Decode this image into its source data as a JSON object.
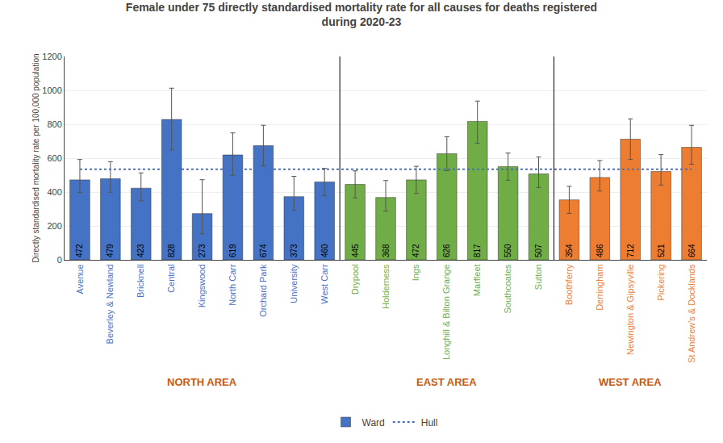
{
  "chart_data": {
    "type": "bar",
    "title": "Female under 75 directly standardised mortality rate for all causes for deaths registered\nduring 2020-23",
    "ylabel": "Directly standardised mortality rate per 100,000 population",
    "categories": [
      "Avenue",
      "Beverley & Newland",
      "Bricknell",
      "Central",
      "Kingswood",
      "North Carr",
      "Orchard Park",
      "University",
      "West Carr",
      "Drypool",
      "Holderness",
      "Ings",
      "Longhill & Bilton Grange",
      "Marfleet",
      "Southcoates",
      "Sutton",
      "Boothferry",
      "Derringham",
      "Newington & Gipsyville",
      "Pickering",
      "St Andrew's & Docklands"
    ],
    "series": [
      {
        "name": "Ward",
        "type": "bar",
        "values": [
          472,
          479,
          423,
          828,
          273,
          619,
          674,
          373,
          460,
          445,
          368,
          472,
          626,
          817,
          550,
          507,
          354,
          486,
          712,
          521,
          664
        ],
        "colors": [
          "#4472C4",
          "#4472C4",
          "#4472C4",
          "#4472C4",
          "#4472C4",
          "#4472C4",
          "#4472C4",
          "#4472C4",
          "#4472C4",
          "#70AD47",
          "#70AD47",
          "#70AD47",
          "#70AD47",
          "#70AD47",
          "#70AD47",
          "#70AD47",
          "#ED7D31",
          "#ED7D31",
          "#ED7D31",
          "#ED7D31",
          "#ED7D31"
        ],
        "error_low": [
          75,
          80,
          75,
          180,
          120,
          120,
          120,
          80,
          80,
          80,
          80,
          80,
          100,
          130,
          80,
          80,
          80,
          80,
          120,
          80,
          100
        ],
        "error_high": [
          120,
          100,
          90,
          185,
          200,
          130,
          120,
          120,
          80,
          80,
          100,
          80,
          100,
          120,
          80,
          100,
          80,
          100,
          120,
          100,
          130
        ]
      },
      {
        "name": "Hull",
        "type": "line",
        "line_style": "dotted",
        "color": "#4472C4",
        "values": [
          535,
          535,
          535,
          535,
          535,
          535,
          535,
          535,
          535,
          535,
          535,
          535,
          535,
          535,
          535,
          535,
          535,
          535,
          535,
          535,
          535
        ]
      }
    ],
    "annotations": [
      {
        "text": "NORTH AREA",
        "color": "#C55A11",
        "from": "Avenue",
        "to": "West Carr"
      },
      {
        "text": "EAST AREA",
        "color": "#C55A11",
        "from": "Drypool",
        "to": "Sutton"
      },
      {
        "text": "WEST AREA",
        "color": "#C55A11",
        "from": "Boothferry",
        "to": "St Andrew's & Docklands"
      }
    ],
    "ylim": [
      0,
      1200
    ],
    "yticks": [
      0,
      200,
      400,
      600,
      800,
      1000,
      1200
    ],
    "grid": true,
    "data_labels": true,
    "legend": "bottom"
  }
}
